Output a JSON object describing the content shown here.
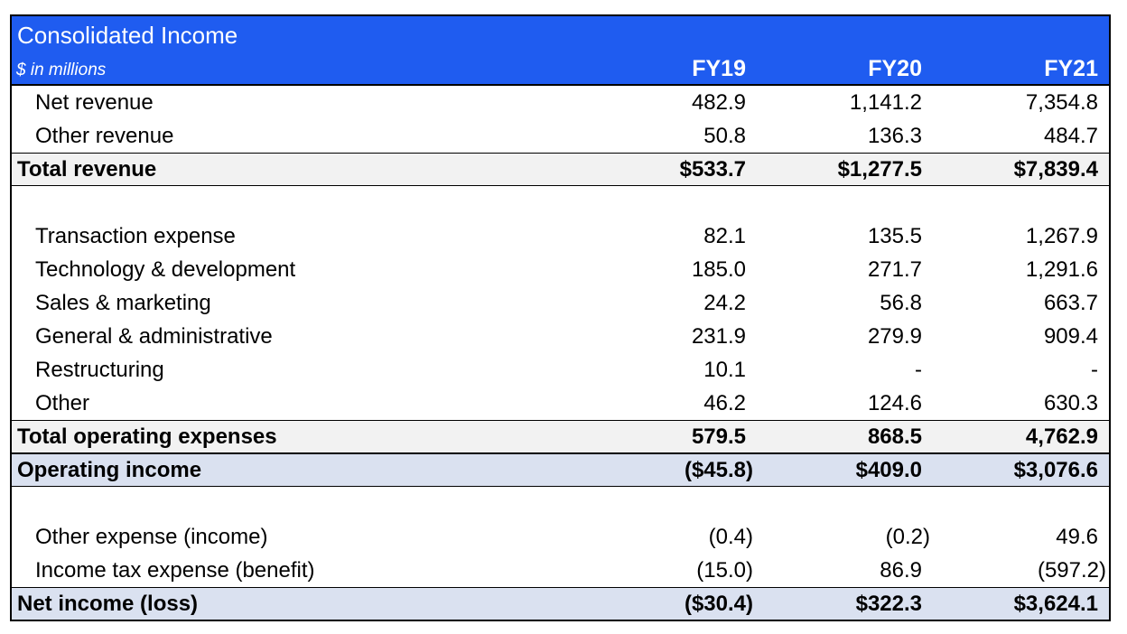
{
  "table": {
    "title": "Consolidated Income",
    "subtitle": "$ in millions",
    "columns": [
      "FY19",
      "FY20",
      "FY21"
    ],
    "rows": [
      {
        "label": "Net revenue",
        "values": [
          "482.9",
          "1,141.2",
          "7,354.8"
        ]
      },
      {
        "label": "Other revenue",
        "values": [
          "50.8",
          "136.3",
          "484.7"
        ]
      },
      {
        "label": "Total revenue",
        "values": [
          "$533.7",
          "$1,277.5",
          "$7,839.4"
        ]
      },
      {
        "label": "Transaction expense",
        "values": [
          "82.1",
          "135.5",
          "1,267.9"
        ]
      },
      {
        "label": "Technology & development",
        "values": [
          "185.0",
          "271.7",
          "1,291.6"
        ]
      },
      {
        "label": "Sales & marketing",
        "values": [
          "24.2",
          "56.8",
          "663.7"
        ]
      },
      {
        "label": "General & administrative",
        "values": [
          "231.9",
          "279.9",
          "909.4"
        ]
      },
      {
        "label": "Restructuring",
        "values": [
          "10.1",
          "-",
          "-"
        ]
      },
      {
        "label": "Other",
        "values": [
          "46.2",
          "124.6",
          "630.3"
        ]
      },
      {
        "label": "Total operating expenses",
        "values": [
          "579.5",
          "868.5",
          "4,762.9"
        ]
      },
      {
        "label": "Operating income",
        "values": [
          "($45.8)",
          "$409.0",
          "$3,076.6"
        ]
      },
      {
        "label": "Other expense (income)",
        "values": [
          "(0.4)",
          "(0.2)",
          "49.6"
        ]
      },
      {
        "label": "Income tax expense (benefit)",
        "values": [
          "(15.0)",
          "86.9",
          "(597.2)"
        ]
      },
      {
        "label": "Net income (loss)",
        "values": [
          "($30.4)",
          "$322.3",
          "$3,624.1"
        ]
      }
    ]
  },
  "colors": {
    "header_bg": "#1f5cf0",
    "total_bg": "#f2f2f2",
    "highlight_bg": "#dae1f0"
  }
}
